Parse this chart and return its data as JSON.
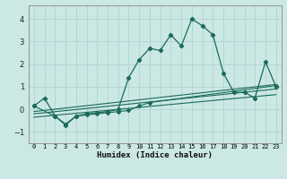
{
  "xlabel": "Humidex (Indice chaleur)",
  "xlim": [
    -0.5,
    23.5
  ],
  "ylim": [
    -1.5,
    4.6
  ],
  "yticks": [
    -1,
    0,
    1,
    2,
    3,
    4
  ],
  "xtick_labels": [
    "0",
    "1",
    "2",
    "3",
    "4",
    "5",
    "6",
    "7",
    "8",
    "9",
    "10",
    "11",
    "12",
    "13",
    "14",
    "15",
    "16",
    "17",
    "18",
    "19",
    "20",
    "21",
    "22",
    "23"
  ],
  "bg_color": "#cce8e4",
  "line_color": "#1a6b5a",
  "grid_color": "#aed4cf",
  "series1_x": [
    0,
    1,
    2,
    3,
    4,
    5,
    6,
    7,
    8,
    9,
    10,
    11,
    12,
    13,
    14,
    15,
    16,
    17,
    18,
    19,
    20,
    21,
    22,
    23
  ],
  "series1_y": [
    0.15,
    0.5,
    -0.3,
    -0.7,
    -0.3,
    -0.2,
    -0.15,
    -0.1,
    0.0,
    1.4,
    2.2,
    2.7,
    2.6,
    3.3,
    2.8,
    4.0,
    3.7,
    3.3,
    1.6,
    0.75,
    0.75,
    0.5,
    2.1,
    1.0
  ],
  "series2_x": [
    0,
    23
  ],
  "series2_y": [
    -0.1,
    1.1
  ],
  "series3_x": [
    0,
    23
  ],
  "series3_y": [
    -0.2,
    0.9
  ],
  "series4_x": [
    0,
    23
  ],
  "series4_y": [
    -0.35,
    0.65
  ],
  "series5_x": [
    0,
    2,
    3,
    4,
    5,
    6,
    7,
    8,
    9,
    10,
    11,
    23
  ],
  "series5_y": [
    0.15,
    -0.3,
    -0.65,
    -0.3,
    -0.25,
    -0.2,
    -0.15,
    -0.1,
    -0.05,
    0.15,
    0.3,
    1.05
  ]
}
